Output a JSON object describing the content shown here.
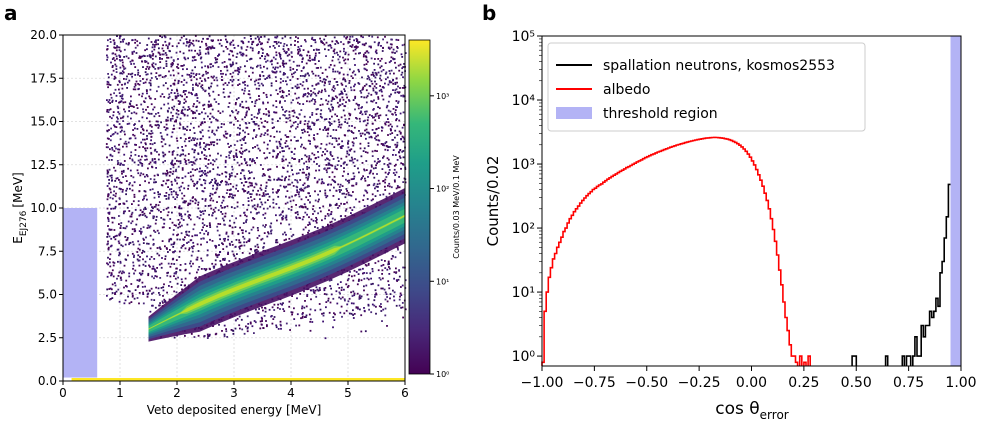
{
  "panel_a": {
    "label": "a",
    "chart_data": {
      "type": "heatmap",
      "xlabel": "Veto deposited energy [MeV]",
      "ylabel_main": "E",
      "ylabel_sub": "EJ276",
      "ylabel_unit": "[MeV]",
      "xlim": [
        0,
        6
      ],
      "ylim": [
        0,
        20
      ],
      "xticks": [
        "0",
        "1",
        "2",
        "3",
        "4",
        "5",
        "6"
      ],
      "yticks": [
        "0.0",
        "2.5",
        "5.0",
        "7.5",
        "10.0",
        "12.5",
        "15.0",
        "17.5",
        "20.0"
      ],
      "grid": true,
      "colorbar": {
        "label": "Counts/0.03 MeV/0.1 MeV",
        "scale": "log",
        "range": [
          1,
          4000
        ],
        "ticks": [
          "10⁰",
          "10¹",
          "10²",
          "10³"
        ],
        "colormap": "viridis"
      },
      "threshold_region": {
        "x": [
          0,
          0.6
        ],
        "y": [
          0.2,
          10
        ],
        "color": "#b3b3f5"
      },
      "band": {
        "x_start": 1.5,
        "x_end": 6,
        "y_start": 3.0,
        "y_end": 9.5
      },
      "noise_region": {
        "x": [
          0.75,
          6
        ],
        "y": [
          2.5,
          20
        ]
      }
    }
  },
  "panel_b": {
    "label": "b",
    "chart_data": {
      "type": "line",
      "xlabel": "cos θ",
      "xlabel_sub": "error",
      "ylabel": "Counts/0.02",
      "xlim": [
        -1.0,
        1.0
      ],
      "ylim_log": [
        0.7,
        100000
      ],
      "yscale": "log",
      "xticks": [
        "−1.00",
        "−0.75",
        "−0.50",
        "−0.25",
        "0.00",
        "0.25",
        "0.50",
        "0.75",
        "1.00"
      ],
      "yticks": [
        "10⁰",
        "10¹",
        "10²",
        "10³",
        "10⁴",
        "10⁵"
      ],
      "grid": false,
      "legend_position": "top-left",
      "threshold_region": {
        "x": [
          0.95,
          1.0
        ],
        "color": "#b3b3f5"
      },
      "series": [
        {
          "name": "spallation neutrons, kosmos2553",
          "color": "#000000",
          "x_start": 0.4,
          "bin": 0.01,
          "values": [
            0,
            0,
            0,
            0,
            0,
            0,
            0,
            0,
            1,
            1,
            0,
            0,
            0,
            0,
            0,
            0,
            0,
            0,
            0,
            0,
            0,
            0,
            0,
            0,
            1,
            0,
            0,
            0,
            0,
            0,
            0,
            0,
            1,
            0,
            1,
            1,
            0,
            1,
            2,
            1,
            1,
            3,
            2,
            3,
            3,
            5,
            4,
            5,
            8,
            6,
            20,
            30,
            70,
            150,
            480
          ]
        },
        {
          "name": "albedo",
          "color": "#ff0000",
          "x_start": -1.0,
          "bin": 0.01,
          "values": [
            0.8,
            5,
            10,
            17,
            24,
            33,
            40,
            50,
            60,
            72,
            88,
            100,
            120,
            140,
            158,
            180,
            200,
            220,
            245,
            270,
            295,
            320,
            345,
            370,
            400,
            420,
            448,
            470,
            490,
            520,
            550,
            580,
            610,
            640,
            670,
            700,
            735,
            770,
            800,
            840,
            880,
            910,
            950,
            990,
            1030,
            1080,
            1120,
            1160,
            1210,
            1260,
            1300,
            1350,
            1400,
            1440,
            1490,
            1540,
            1580,
            1630,
            1680,
            1730,
            1780,
            1830,
            1880,
            1930,
            1980,
            2020,
            2070,
            2110,
            2160,
            2200,
            2250,
            2290,
            2330,
            2370,
            2410,
            2440,
            2480,
            2510,
            2540,
            2560,
            2580,
            2600,
            2610,
            2600,
            2580,
            2560,
            2530,
            2490,
            2450,
            2400,
            2340,
            2260,
            2180,
            2080,
            1970,
            1850,
            1720,
            1580,
            1430,
            1280,
            1120,
            970,
            820,
            680,
            560,
            450,
            350,
            270,
            200,
            140,
            95,
            62,
            38,
            22,
            13,
            7,
            4,
            2.5,
            1.5,
            1,
            1,
            0.8,
            0,
            1,
            0,
            0.8,
            0,
            1,
            0,
            0,
            0,
            0,
            0,
            0,
            0,
            0,
            0,
            0,
            0,
            0,
            0,
            0,
            0,
            0,
            0,
            0,
            0,
            0,
            0,
            0,
            0,
            0,
            0,
            0,
            0,
            0,
            0,
            0,
            0,
            0,
            0,
            0,
            0,
            0,
            0,
            0,
            0,
            0,
            0,
            0,
            0,
            0,
            0,
            0,
            0,
            0,
            0,
            0,
            0,
            0,
            0,
            0,
            0,
            0,
            0,
            0,
            0,
            0,
            0,
            0,
            0,
            0,
            0,
            0,
            0,
            0,
            0,
            0,
            0,
            0,
            0,
            0
          ]
        }
      ],
      "legend": [
        {
          "label": "spallation neutrons, kosmos2553",
          "kind": "line",
          "color": "#000000"
        },
        {
          "label": "albedo",
          "kind": "line",
          "color": "#ff0000"
        },
        {
          "label": "threshold region",
          "kind": "patch",
          "color": "#b3b3f5"
        }
      ]
    }
  }
}
